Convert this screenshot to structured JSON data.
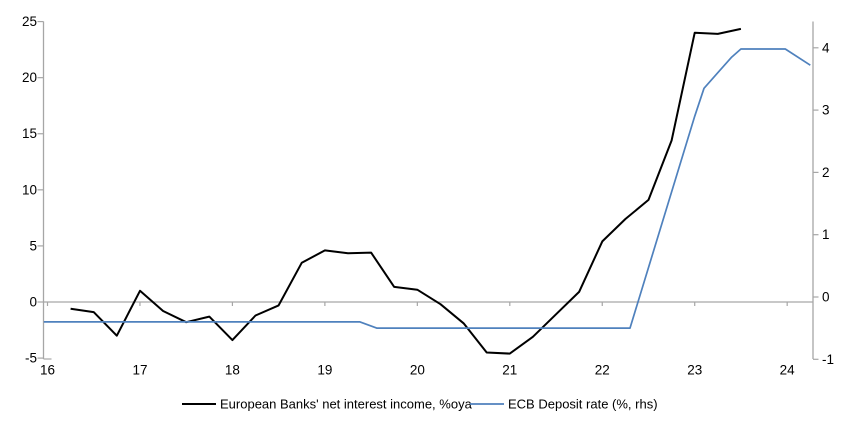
{
  "chart_data": {
    "type": "line",
    "title": "",
    "x_axis": {
      "tick_labels": [
        "16",
        "17",
        "18",
        "19",
        "20",
        "21",
        "22",
        "23",
        "24"
      ],
      "tick_values": [
        16,
        17,
        18,
        19,
        20,
        21,
        22,
        23,
        24
      ],
      "range": [
        15.96,
        24.28
      ]
    },
    "left_axis": {
      "tick_values": [
        -5,
        0,
        5,
        10,
        15,
        20,
        25
      ],
      "range": [
        -5,
        25
      ],
      "units": "%oya"
    },
    "right_axis": {
      "tick_values": [
        -1,
        0,
        1,
        2,
        3,
        4
      ],
      "range": [
        -1,
        4.4
      ],
      "units": "%"
    },
    "grid": "zero-line-only",
    "legend_position": "bottom-center",
    "axis_color": "#a6a6a6",
    "series": [
      {
        "name": "European Banks' net interest income, %oya",
        "axis": "left",
        "color": "#000000",
        "x": [
          16.25,
          16.5,
          16.75,
          17.0,
          17.25,
          17.5,
          17.75,
          18.0,
          18.25,
          18.5,
          18.75,
          19.0,
          19.25,
          19.5,
          19.75,
          20.0,
          20.25,
          20.5,
          20.75,
          21.0,
          21.25,
          21.5,
          21.75,
          22.0,
          22.25,
          22.5,
          22.75,
          23.0,
          23.25,
          23.5
        ],
        "y": [
          -0.6,
          -0.9,
          -3.0,
          1.0,
          -0.8,
          -1.8,
          -1.3,
          -3.4,
          -1.2,
          -0.3,
          3.5,
          4.6,
          4.35,
          4.4,
          1.35,
          1.1,
          -0.2,
          -1.9,
          -4.5,
          -4.6,
          -3.1,
          -1.1,
          0.9,
          5.4,
          7.4,
          9.1,
          14.4,
          24.0,
          23.9,
          24.35
        ]
      },
      {
        "name": "ECB Deposit rate (%, rhs)",
        "axis": "right",
        "color": "#4f81bd",
        "x": [
          15.96,
          19.38,
          19.56,
          22.3,
          23.0,
          23.1,
          23.25,
          23.4,
          23.5,
          23.98,
          24.25
        ],
        "y": [
          -0.4,
          -0.4,
          -0.5,
          -0.5,
          2.9,
          3.35,
          3.6,
          3.85,
          3.98,
          3.98,
          3.72
        ]
      }
    ]
  }
}
